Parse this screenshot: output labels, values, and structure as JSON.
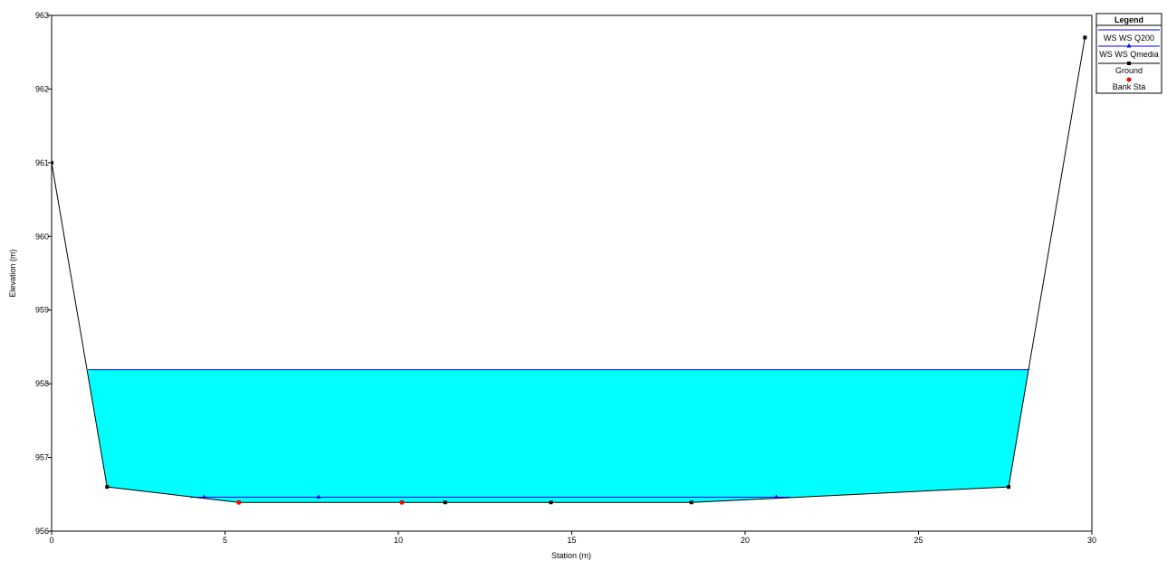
{
  "chart_data": {
    "type": "line",
    "title": "",
    "xlabel": "Station (m)",
    "ylabel": "Elevation (m)",
    "xlim": [
      0,
      30
    ],
    "ylim": [
      956,
      963
    ],
    "x_ticks": [
      0,
      5,
      10,
      15,
      20,
      25,
      30
    ],
    "y_ticks": [
      956,
      957,
      958,
      959,
      960,
      961,
      962,
      963
    ],
    "grid": false,
    "legend": {
      "title": "Legend",
      "placement": "top-right",
      "entries": [
        "WS WS Q200",
        "WS WS Qmedia",
        "Ground",
        "Bank Sta"
      ]
    },
    "series": [
      {
        "name": "WS WS Q200",
        "kind": "water-surface",
        "elevation": 958.19,
        "x_range": [
          1.05,
          28.2
        ],
        "fill_color": "#00ffff",
        "line_color": "#0000ff"
      },
      {
        "name": "WS WS Qmedia",
        "kind": "water-surface",
        "line_color": "#0000ff",
        "marker": "triangle",
        "x": [
          4.4,
          7.7,
          20.9
        ],
        "y": [
          956.46,
          956.46,
          956.46
        ],
        "x_range": [
          4.0,
          21.3
        ]
      },
      {
        "name": "Ground",
        "line_color": "#000000",
        "marker": "square",
        "x": [
          0,
          1.6,
          5.4,
          10.1,
          11.35,
          14.4,
          18.45,
          27.6,
          29.8
        ],
        "y": [
          961.0,
          956.6,
          956.39,
          956.39,
          956.39,
          956.39,
          956.39,
          956.6,
          962.7
        ]
      },
      {
        "name": "Bank Sta",
        "marker_color": "#ff0000",
        "marker": "circle",
        "x": [
          5.4,
          10.1
        ],
        "y": [
          956.39,
          956.39
        ]
      }
    ]
  }
}
